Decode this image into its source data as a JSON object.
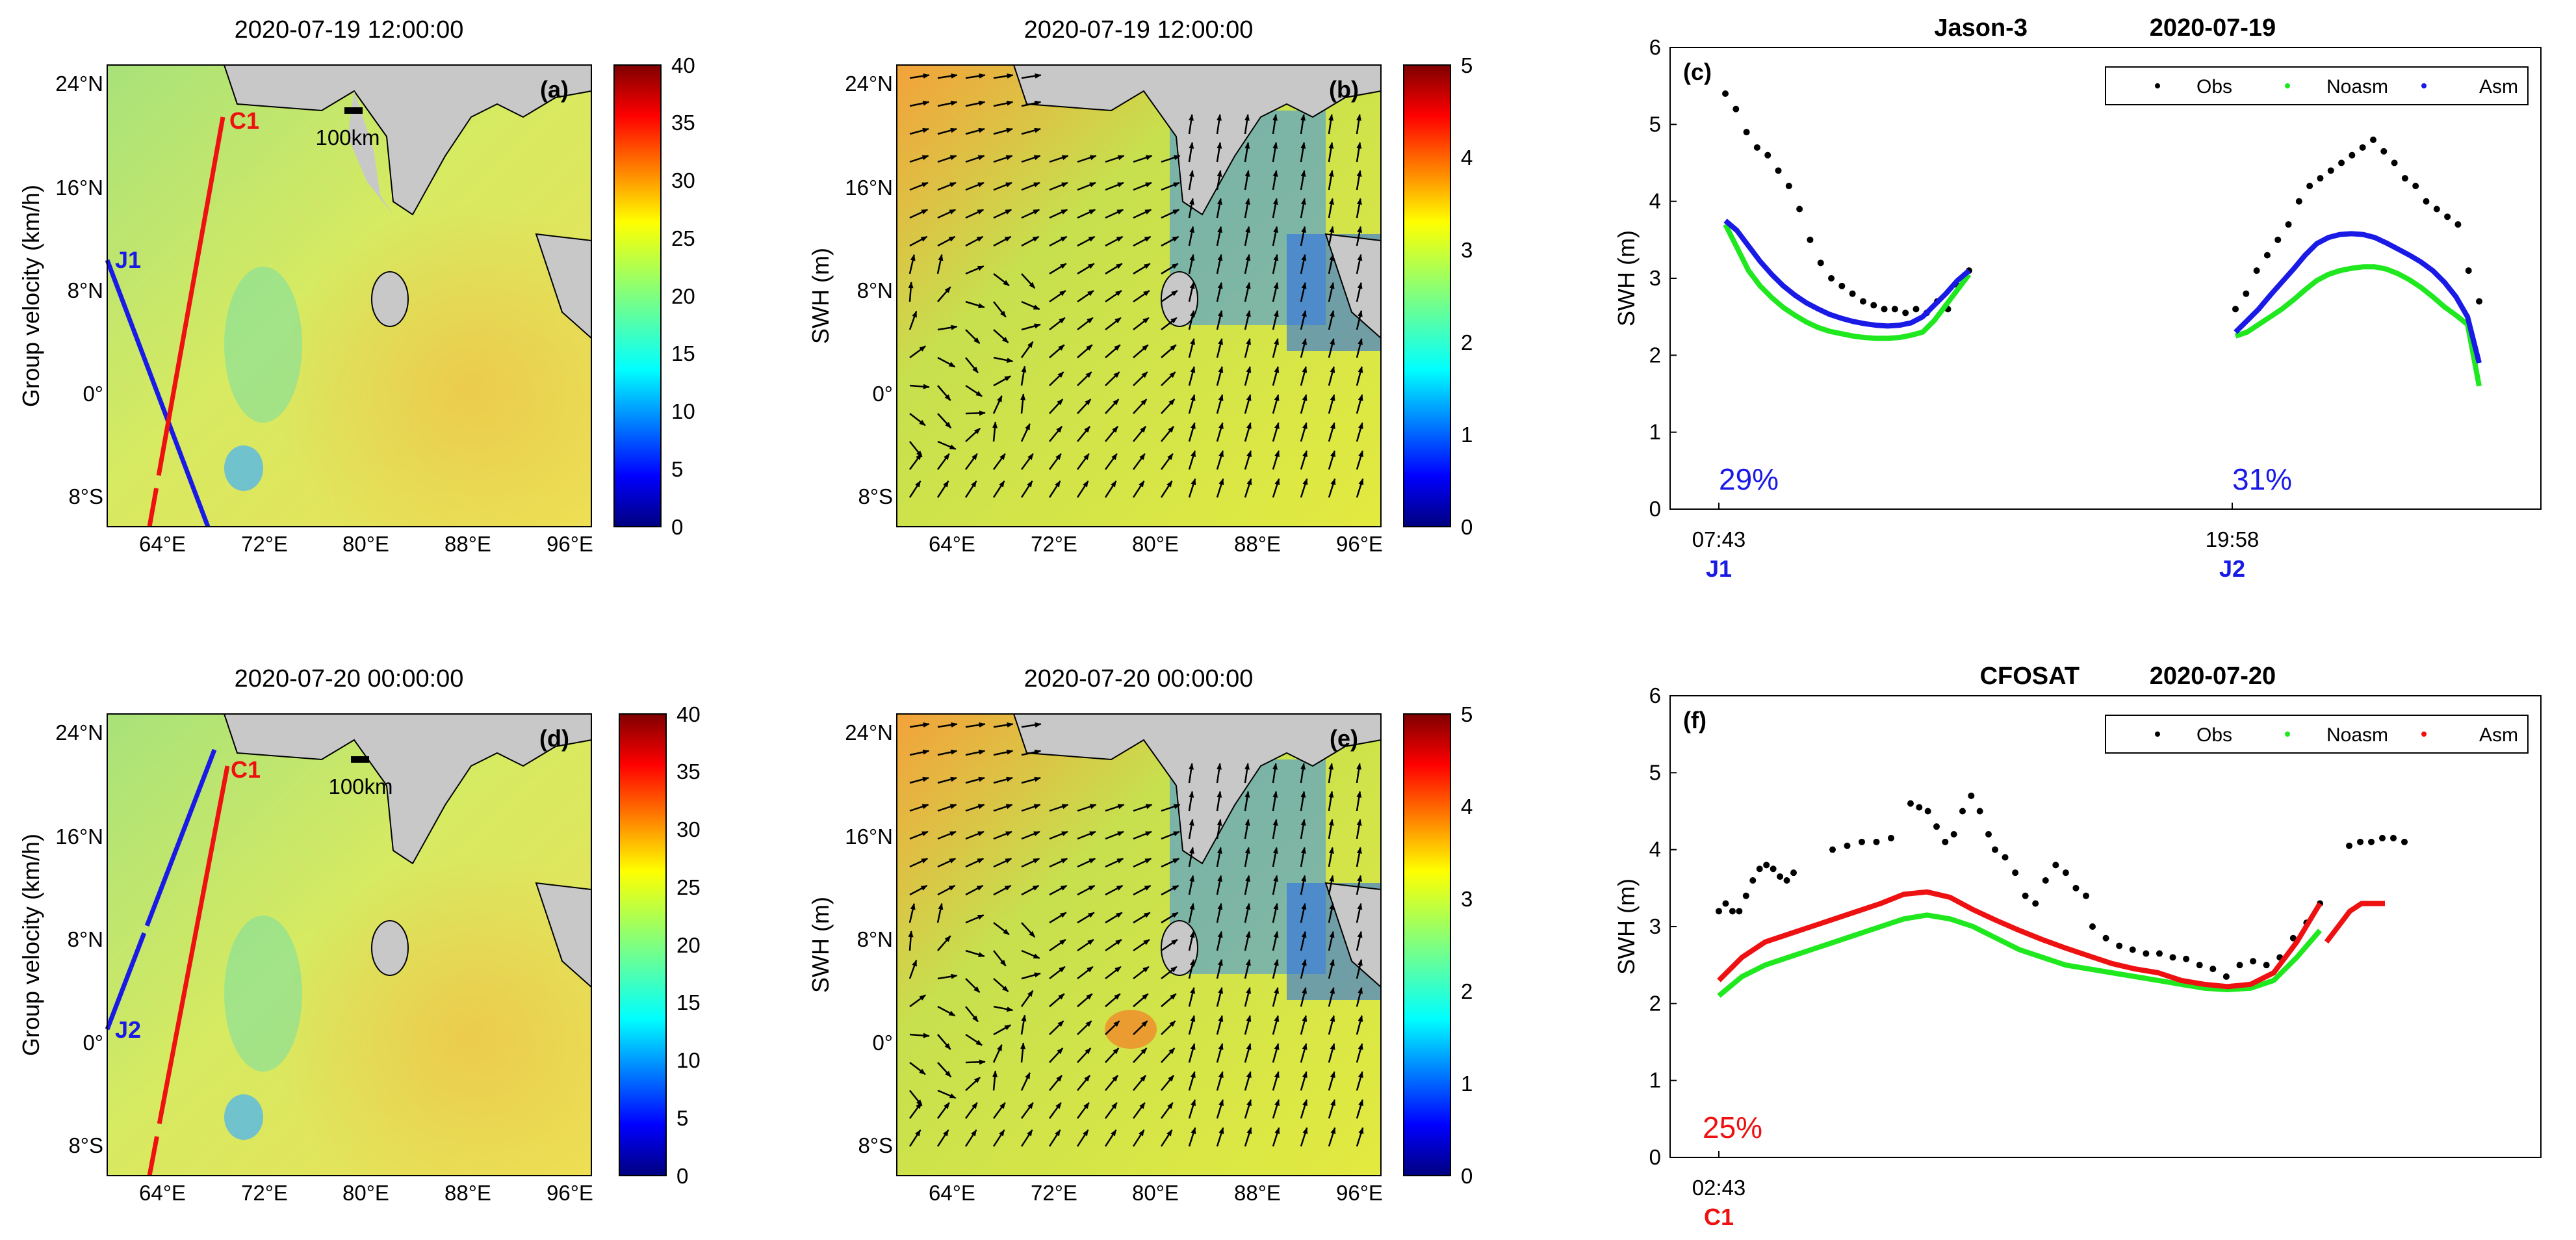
{
  "colors": {
    "land": "#c8c8c8",
    "obs": "#000000",
    "noasm": "#1fe81f",
    "asm_jason": "#1a1ae6",
    "asm_cfosat": "#ee1111",
    "track_jason": "#1a1ae6",
    "track_cfosat": "#ee1111"
  },
  "maps": {
    "a": {
      "title": "2020-07-19 12:00:00",
      "label": "(a)",
      "ylabel": "Group velocity (km/h)",
      "cbar_ticks": [
        "0",
        "5",
        "10",
        "15",
        "20",
        "25",
        "30",
        "35",
        "40"
      ],
      "scale": "100km",
      "tracks": [
        "J1"
      ],
      "cfosat": "C1"
    },
    "b": {
      "title": "2020-07-19 12:00:00",
      "label": "(b)",
      "ylabel": "SWH (m)",
      "cbar_ticks": [
        "0",
        "1",
        "2",
        "3",
        "4",
        "5"
      ]
    },
    "d": {
      "title": "2020-07-20 00:00:00",
      "label": "(d)",
      "ylabel": "Group velocity (km/h)",
      "cbar_ticks": [
        "0",
        "5",
        "10",
        "15",
        "20",
        "25",
        "30",
        "35",
        "40"
      ],
      "scale": "100km",
      "tracks": [
        "J2"
      ],
      "cfosat": "C1"
    },
    "e": {
      "title": "2020-07-20 00:00:00",
      "label": "(e)",
      "ylabel": "SWH (m)",
      "cbar_ticks": [
        "0",
        "1",
        "2",
        "3",
        "4",
        "5"
      ]
    }
  },
  "map_axes": {
    "lat_ticks": [
      "24°N",
      "16°N",
      "8°N",
      "0°",
      "8°S"
    ],
    "lon_ticks": [
      "64°E",
      "72°E",
      "80°E",
      "88°E",
      "96°E"
    ]
  },
  "chart_data": [
    {
      "type": "line",
      "panel": "(c)",
      "title_sat": "Jason-3",
      "title_date": "2020-07-19",
      "ylabel": "SWH (m)",
      "ylim": [
        0,
        6
      ],
      "yticks": [
        0,
        1,
        2,
        3,
        4,
        5,
        6
      ],
      "legend": [
        "Obs",
        "Noasm",
        "Asm"
      ],
      "legend_position": "top-right",
      "passes": [
        {
          "name": "J1",
          "time": "07:43",
          "improvement": "29%"
        },
        {
          "name": "J2",
          "time": "19:58",
          "improvement": "31%"
        }
      ],
      "series": [
        {
          "name": "Obs",
          "segments": [
            [
              5.4,
              5.2,
              4.9,
              4.7,
              4.6,
              4.4,
              4.2,
              3.9,
              3.5,
              3.2,
              3.0,
              2.9,
              2.8,
              2.7,
              2.65,
              2.6,
              2.6,
              2.55,
              2.6,
              2.55,
              2.7,
              2.6,
              2.9,
              3.1
            ],
            [
              2.6,
              2.8,
              3.1,
              3.3,
              3.5,
              3.7,
              4.0,
              4.2,
              4.3,
              4.4,
              4.5,
              4.6,
              4.7,
              4.8,
              4.65,
              4.5,
              4.3,
              4.2,
              4.0,
              3.9,
              3.8,
              3.7,
              3.1,
              2.7
            ]
          ]
        },
        {
          "name": "Noasm",
          "segments": [
            [
              3.7,
              3.4,
              3.1,
              2.9,
              2.75,
              2.62,
              2.52,
              2.43,
              2.36,
              2.31,
              2.28,
              2.25,
              2.23,
              2.22,
              2.22,
              2.23,
              2.26,
              2.3,
              2.45,
              2.65,
              2.85,
              3.05
            ],
            [
              2.25,
              2.3,
              2.4,
              2.5,
              2.6,
              2.72,
              2.85,
              2.97,
              3.05,
              3.1,
              3.13,
              3.15,
              3.15,
              3.12,
              3.06,
              2.98,
              2.88,
              2.76,
              2.63,
              2.52,
              2.4,
              1.6
            ]
          ]
        },
        {
          "name": "Asm",
          "segments": [
            [
              3.75,
              3.62,
              3.42,
              3.22,
              3.05,
              2.9,
              2.78,
              2.68,
              2.6,
              2.53,
              2.48,
              2.44,
              2.41,
              2.39,
              2.38,
              2.39,
              2.42,
              2.5,
              2.65,
              2.8,
              2.97,
              3.1
            ],
            [
              2.3,
              2.45,
              2.6,
              2.78,
              2.95,
              3.12,
              3.3,
              3.45,
              3.53,
              3.57,
              3.58,
              3.57,
              3.53,
              3.46,
              3.38,
              3.3,
              3.21,
              3.1,
              2.95,
              2.76,
              2.5,
              1.9
            ]
          ]
        }
      ]
    },
    {
      "type": "line",
      "panel": "(f)",
      "title_sat": "CFOSAT",
      "title_date": "2020-07-20",
      "ylabel": "SWH (m)",
      "ylim": [
        0,
        6
      ],
      "yticks": [
        0,
        1,
        2,
        3,
        4,
        5,
        6
      ],
      "legend": [
        "Obs",
        "Noasm",
        "Asm"
      ],
      "legend_position": "top-right",
      "passes": [
        {
          "name": "C1",
          "time": "02:43",
          "improvement": "25%"
        }
      ],
      "series": [
        {
          "name": "Obs",
          "segments": [
            [
              3.2,
              3.3,
              3.2,
              3.2,
              3.4,
              3.6,
              3.75,
              3.8,
              3.75,
              3.65,
              3.6,
              3.7
            ],
            [
              4.0,
              4.05,
              4.1,
              4.1,
              4.15
            ],
            [
              4.6,
              4.55,
              4.5,
              4.3,
              4.1,
              4.2,
              4.5,
              4.7,
              4.5,
              4.2
            ],
            [
              4.0,
              3.9,
              3.7,
              3.4,
              3.3,
              3.6,
              3.8,
              3.7,
              3.5,
              3.4
            ],
            [
              3.0,
              2.85,
              2.75,
              2.7,
              2.65,
              2.65,
              2.6,
              2.58,
              2.5,
              2.45,
              2.35,
              2.5,
              2.55,
              2.5,
              2.6,
              2.85,
              3.05,
              3.3
            ],
            [
              4.05,
              4.1,
              4.1,
              4.15,
              4.15,
              4.1
            ]
          ]
        },
        {
          "name": "Noasm",
          "segments": [
            [
              2.1,
              2.35,
              2.5,
              2.6,
              2.7,
              2.8,
              2.9,
              3.0,
              3.1,
              3.15,
              3.1,
              3.0,
              2.85,
              2.7,
              2.6,
              2.5,
              2.45,
              2.4,
              2.35,
              2.3,
              2.25,
              2.2,
              2.18,
              2.2,
              2.3,
              2.6,
              2.95
            ]
          ]
        },
        {
          "name": "Asm",
          "segments": [
            [
              2.3,
              2.6,
              2.8,
              2.9,
              3.0,
              3.1,
              3.2,
              3.3,
              3.42,
              3.45,
              3.38,
              3.22,
              3.08,
              2.95,
              2.83,
              2.72,
              2.62,
              2.52,
              2.45,
              2.4,
              2.3,
              2.25,
              2.22,
              2.25,
              2.4,
              2.8,
              3.3
            ],
            [
              2.8,
              3.0,
              3.2,
              3.3,
              3.3,
              3.3
            ]
          ]
        }
      ]
    }
  ]
}
